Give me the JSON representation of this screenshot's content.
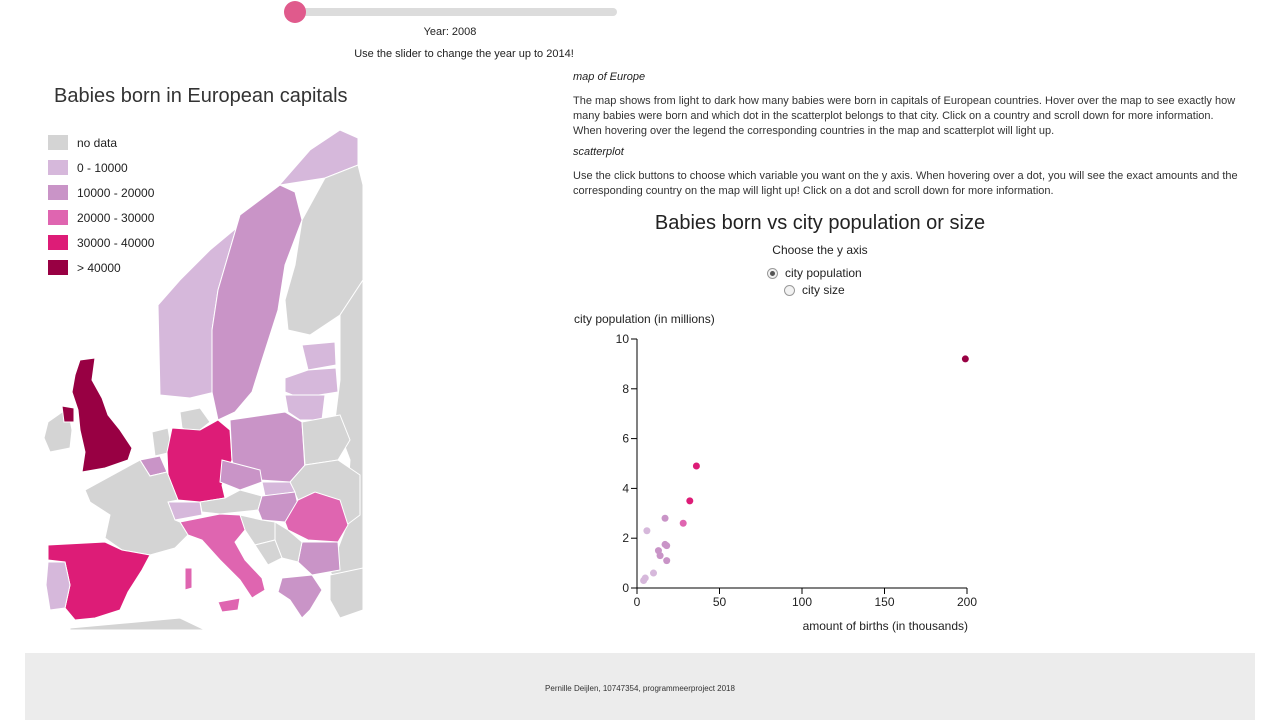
{
  "slider": {
    "year_label": "Year: 2008",
    "hint": "Use the slider to change the year up to 2014!"
  },
  "map": {
    "title": "Babies born in European capitals",
    "legend": [
      {
        "label": "no data",
        "color": "#d4d4d4"
      },
      {
        "label": "0 - 10000",
        "color": "#d6b8db"
      },
      {
        "label": "10000 - 20000",
        "color": "#c994c7"
      },
      {
        "label": "20000 - 30000",
        "color": "#df65b0"
      },
      {
        "label": "30000 - 40000",
        "color": "#dd1c77"
      },
      {
        "label": "> 40000",
        "color": "#980043"
      }
    ]
  },
  "descriptions": {
    "map_heading": "map of Europe",
    "map_text": "The map shows from light to dark how many babies were born in capitals of European countries. Hover over the map to see exactly how many babies were born and which dot in the scatterplot belongs to that city. Click on a country and scroll down for more information. When hovering over the legend the corresponding countries in the map and scatterplot will light up.",
    "scatter_heading": "scatterplot",
    "scatter_text": "Use the click buttons to choose which variable you want on the y axis. When hovering over a dot, you will see the exact amounts and the corresponding country on the map will light up! Click on a dot and scroll down for more information."
  },
  "scatter": {
    "title": "Babies born vs city population or size",
    "choose_label": "Choose the y axis",
    "options": [
      {
        "label": "city population",
        "checked": true
      },
      {
        "label": "city size",
        "checked": false
      }
    ]
  },
  "chart_data": {
    "type": "scatter",
    "xlabel": "amount of births (in thousands)",
    "ylabel": "city population (in millions)",
    "xlim": [
      0,
      200
    ],
    "ylim": [
      0,
      10
    ],
    "x_ticks": [
      "0",
      "50",
      "100",
      "150",
      "200"
    ],
    "y_ticks": [
      "0",
      "2",
      "4",
      "6",
      "8",
      "10"
    ],
    "points": [
      {
        "x": 199,
        "y": 9.2,
        "color": "#980043"
      },
      {
        "x": 36,
        "y": 4.9,
        "color": "#dd1c77"
      },
      {
        "x": 32,
        "y": 3.5,
        "color": "#dd1c77"
      },
      {
        "x": 28,
        "y": 2.6,
        "color": "#df65b0"
      },
      {
        "x": 17,
        "y": 2.8,
        "color": "#c994c7"
      },
      {
        "x": 6,
        "y": 2.3,
        "color": "#d6b8db"
      },
      {
        "x": 17,
        "y": 1.75,
        "color": "#c994c7"
      },
      {
        "x": 18,
        "y": 1.7,
        "color": "#c994c7"
      },
      {
        "x": 13,
        "y": 1.5,
        "color": "#c994c7"
      },
      {
        "x": 14,
        "y": 1.3,
        "color": "#c994c7"
      },
      {
        "x": 18,
        "y": 1.1,
        "color": "#c994c7"
      },
      {
        "x": 10,
        "y": 0.6,
        "color": "#d6b8db"
      },
      {
        "x": 5,
        "y": 0.4,
        "color": "#d6b8db"
      },
      {
        "x": 4,
        "y": 0.3,
        "color": "#d6b8db"
      }
    ]
  },
  "footer": {
    "text": "Pernille Deijlen, 10747354, programmeerproject 2018"
  }
}
